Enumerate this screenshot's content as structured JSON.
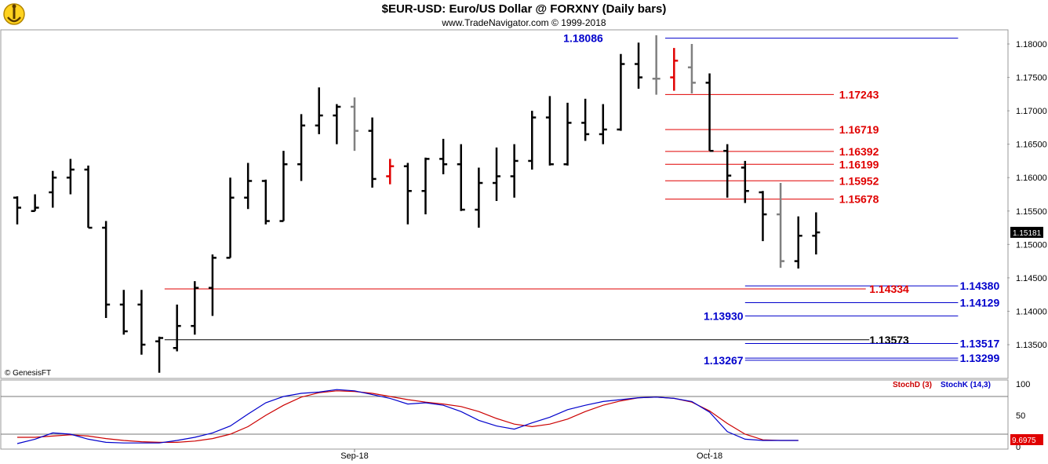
{
  "header": {
    "title": "$EUR-USD:  Euro/US Dollar @ FORXNY  (Daily bars)",
    "subtitle": "www.TradeNavigator.com © 1999-2018",
    "copyright": "© GenesisFT"
  },
  "colors": {
    "up_bar": "#000000",
    "gray_bar": "#808080",
    "red_bar": "#e00000",
    "blue_level": "#0000cc",
    "red_level": "#e00000",
    "black_level": "#000000",
    "stoch_d": "#cc0000",
    "stoch_k": "#0000cc"
  },
  "chart_data": [
    {
      "type": "ohlc",
      "series_name": "$EUR-USD",
      "ylim": [
        1.1306,
        1.182
      ],
      "y_ticks": [
        "1.18000",
        "1.17500",
        "1.17000",
        "1.16500",
        "1.16000",
        "1.15500",
        "1.15000",
        "1.14500",
        "1.14000",
        "1.13500"
      ],
      "x_labels": [
        {
          "label": "Sep-18",
          "index": 19
        },
        {
          "label": "Oct-18",
          "index": 39
        }
      ],
      "last_price": "1.15181",
      "bars": [
        {
          "o": 1.157,
          "h": 1.1572,
          "l": 1.153,
          "c": 1.1555,
          "color": "up_bar"
        },
        {
          "o": 1.155,
          "h": 1.1575,
          "l": 1.155,
          "c": 1.1555,
          "color": "up_bar"
        },
        {
          "o": 1.1578,
          "h": 1.161,
          "l": 1.1555,
          "c": 1.16,
          "color": "up_bar"
        },
        {
          "o": 1.16,
          "h": 1.1628,
          "l": 1.1575,
          "c": 1.1612,
          "color": "up_bar"
        },
        {
          "o": 1.1612,
          "h": 1.1618,
          "l": 1.1525,
          "c": 1.1525,
          "color": "up_bar"
        },
        {
          "o": 1.1525,
          "h": 1.1535,
          "l": 1.139,
          "c": 1.141,
          "color": "up_bar"
        },
        {
          "o": 1.141,
          "h": 1.1432,
          "l": 1.1365,
          "c": 1.137,
          "color": "up_bar"
        },
        {
          "o": 1.141,
          "h": 1.1432,
          "l": 1.1335,
          "c": 1.135,
          "color": "up_bar"
        },
        {
          "o": 1.1355,
          "h": 1.1362,
          "l": 1.1308,
          "c": 1.136,
          "color": "up_bar"
        },
        {
          "o": 1.1345,
          "h": 1.141,
          "l": 1.134,
          "c": 1.1378,
          "color": "up_bar"
        },
        {
          "o": 1.1378,
          "h": 1.1445,
          "l": 1.1365,
          "c": 1.1435,
          "color": "up_bar"
        },
        {
          "o": 1.1435,
          "h": 1.1485,
          "l": 1.1393,
          "c": 1.148,
          "color": "up_bar"
        },
        {
          "o": 1.148,
          "h": 1.16,
          "l": 1.148,
          "c": 1.157,
          "color": "up_bar"
        },
        {
          "o": 1.157,
          "h": 1.1622,
          "l": 1.1553,
          "c": 1.1595,
          "color": "up_bar"
        },
        {
          "o": 1.1595,
          "h": 1.1597,
          "l": 1.153,
          "c": 1.1535,
          "color": "up_bar"
        },
        {
          "o": 1.1535,
          "h": 1.164,
          "l": 1.1535,
          "c": 1.162,
          "color": "up_bar"
        },
        {
          "o": 1.162,
          "h": 1.1695,
          "l": 1.1595,
          "c": 1.1678,
          "color": "up_bar"
        },
        {
          "o": 1.1678,
          "h": 1.1735,
          "l": 1.1665,
          "c": 1.1693,
          "color": "up_bar"
        },
        {
          "o": 1.1693,
          "h": 1.171,
          "l": 1.165,
          "c": 1.1706,
          "color": "up_bar"
        },
        {
          "o": 1.1706,
          "h": 1.172,
          "l": 1.164,
          "c": 1.167,
          "color": "gray_bar"
        },
        {
          "o": 1.167,
          "h": 1.169,
          "l": 1.1585,
          "c": 1.1598,
          "color": "up_bar"
        },
        {
          "o": 1.1602,
          "h": 1.1628,
          "l": 1.159,
          "c": 1.1617,
          "color": "red_bar"
        },
        {
          "o": 1.1617,
          "h": 1.1622,
          "l": 1.153,
          "c": 1.158,
          "color": "up_bar"
        },
        {
          "o": 1.158,
          "h": 1.163,
          "l": 1.1545,
          "c": 1.1628,
          "color": "up_bar"
        },
        {
          "o": 1.1628,
          "h": 1.1658,
          "l": 1.1605,
          "c": 1.162,
          "color": "up_bar"
        },
        {
          "o": 1.162,
          "h": 1.165,
          "l": 1.155,
          "c": 1.1552,
          "color": "up_bar"
        },
        {
          "o": 1.1552,
          "h": 1.1615,
          "l": 1.1525,
          "c": 1.1592,
          "color": "up_bar"
        },
        {
          "o": 1.1592,
          "h": 1.1645,
          "l": 1.1565,
          "c": 1.1602,
          "color": "up_bar"
        },
        {
          "o": 1.1602,
          "h": 1.165,
          "l": 1.157,
          "c": 1.1625,
          "color": "up_bar"
        },
        {
          "o": 1.1625,
          "h": 1.17,
          "l": 1.1612,
          "c": 1.169,
          "color": "up_bar"
        },
        {
          "o": 1.169,
          "h": 1.1722,
          "l": 1.1618,
          "c": 1.162,
          "color": "up_bar"
        },
        {
          "o": 1.162,
          "h": 1.1712,
          "l": 1.1618,
          "c": 1.1682,
          "color": "up_bar"
        },
        {
          "o": 1.1682,
          "h": 1.1718,
          "l": 1.1655,
          "c": 1.1665,
          "color": "up_bar"
        },
        {
          "o": 1.1665,
          "h": 1.171,
          "l": 1.165,
          "c": 1.1672,
          "color": "up_bar"
        },
        {
          "o": 1.1672,
          "h": 1.1785,
          "l": 1.167,
          "c": 1.177,
          "color": "up_bar"
        },
        {
          "o": 1.177,
          "h": 1.1802,
          "l": 1.1733,
          "c": 1.175,
          "color": "up_bar"
        },
        {
          "o": 1.1748,
          "h": 1.1813,
          "l": 1.1724,
          "c": 1.1748,
          "color": "gray_bar"
        },
        {
          "o": 1.175,
          "h": 1.1794,
          "l": 1.173,
          "c": 1.1775,
          "color": "red_bar"
        },
        {
          "o": 1.1765,
          "h": 1.18,
          "l": 1.1726,
          "c": 1.1742,
          "color": "gray_bar"
        },
        {
          "o": 1.1742,
          "h": 1.1756,
          "l": 1.164,
          "c": 1.164,
          "color": "up_bar"
        },
        {
          "o": 1.164,
          "h": 1.165,
          "l": 1.157,
          "c": 1.1603,
          "color": "up_bar"
        },
        {
          "o": 1.1615,
          "h": 1.1625,
          "l": 1.1562,
          "c": 1.158,
          "color": "up_bar"
        },
        {
          "o": 1.1578,
          "h": 1.158,
          "l": 1.1505,
          "c": 1.1545,
          "color": "up_bar"
        },
        {
          "o": 1.1545,
          "h": 1.1592,
          "l": 1.1465,
          "c": 1.1475,
          "color": "gray_bar"
        },
        {
          "o": 1.1475,
          "h": 1.1542,
          "l": 1.1464,
          "c": 1.1513,
          "color": "up_bar"
        },
        {
          "o": 1.1513,
          "h": 1.1548,
          "l": 1.1485,
          "c": 1.1518,
          "color": "up_bar"
        }
      ],
      "levels": [
        {
          "value": "1.18086",
          "color": "blue_level",
          "x_from": 36.5,
          "x_to": 53.0,
          "label_at": 33.0,
          "side": "left"
        },
        {
          "value": "1.17243",
          "color": "red_level",
          "x_from": 36.5,
          "x_to": 46.0,
          "label_at": 46.3,
          "side": "right"
        },
        {
          "value": "1.16719",
          "color": "red_level",
          "x_from": 36.5,
          "x_to": 46.0,
          "label_at": 46.3,
          "side": "right"
        },
        {
          "value": "1.16392",
          "color": "red_level",
          "x_from": 36.5,
          "x_to": 46.0,
          "label_at": 46.3,
          "side": "right"
        },
        {
          "value": "1.16199",
          "color": "red_level",
          "x_from": 36.5,
          "x_to": 46.0,
          "label_at": 46.3,
          "side": "right"
        },
        {
          "value": "1.15952",
          "color": "red_level",
          "x_from": 36.5,
          "x_to": 46.0,
          "label_at": 46.3,
          "side": "right"
        },
        {
          "value": "1.15678",
          "color": "red_level",
          "x_from": 36.5,
          "x_to": 46.0,
          "label_at": 46.3,
          "side": "right"
        },
        {
          "value": "1.14380",
          "color": "blue_level",
          "x_from": 41.0,
          "x_to": 53.0,
          "label_at": 53.1,
          "side": "right"
        },
        {
          "value": "1.14334",
          "color": "red_level",
          "x_from": 8.3,
          "x_to": 47.8,
          "label_at": 48.0,
          "side": "right"
        },
        {
          "value": "1.14129",
          "color": "blue_level",
          "x_from": 41.0,
          "x_to": 53.0,
          "label_at": 53.1,
          "side": "right"
        },
        {
          "value": "1.13930",
          "color": "blue_level",
          "x_from": 41.0,
          "x_to": 53.0,
          "label_at": 40.9,
          "side": "left"
        },
        {
          "value": "1.13573",
          "color": "black_level",
          "x_from": 8.3,
          "x_to": 48.0,
          "label_at": 48.0,
          "side": "right"
        },
        {
          "value": "1.13517",
          "color": "blue_level",
          "x_from": 41.0,
          "x_to": 53.0,
          "label_at": 53.1,
          "side": "right"
        },
        {
          "value": "1.13299",
          "color": "blue_level",
          "x_from": 41.0,
          "x_to": 53.0,
          "label_at": 53.1,
          "side": "right"
        },
        {
          "value": "1.13267",
          "color": "blue_level",
          "x_from": 41.0,
          "x_to": 53.0,
          "label_at": 40.9,
          "side": "left"
        }
      ]
    },
    {
      "type": "line",
      "ylim": [
        0,
        100
      ],
      "y_ticks": [
        "100",
        "50",
        "0"
      ],
      "ref_lines": [
        80,
        20
      ],
      "legend": [
        "StochD (3)",
        "StochK (14,3)"
      ],
      "last_value": "9.6975",
      "series": [
        {
          "name": "StochD (3)",
          "color": "stoch_d",
          "values": [
            15,
            15,
            17,
            19,
            17,
            13,
            10,
            8,
            7,
            7,
            9,
            13,
            20,
            32,
            50,
            66,
            79,
            86,
            89,
            88,
            85,
            80,
            75,
            71,
            68,
            64,
            56,
            45,
            36,
            32,
            36,
            44,
            56,
            66,
            73,
            78,
            79,
            77,
            71,
            57,
            37,
            20,
            11,
            10,
            10
          ]
        },
        {
          "name": "StochK (14,3)",
          "color": "stoch_k",
          "values": [
            5,
            12,
            22,
            20,
            12,
            7,
            6,
            6,
            6,
            10,
            15,
            22,
            33,
            52,
            70,
            80,
            85,
            87,
            91,
            89,
            83,
            77,
            68,
            70,
            66,
            56,
            42,
            33,
            28,
            38,
            47,
            59,
            66,
            72,
            75,
            78,
            79,
            77,
            72,
            55,
            24,
            12,
            10,
            10,
            10
          ]
        }
      ],
      "x_offset_index": 0.5
    }
  ]
}
